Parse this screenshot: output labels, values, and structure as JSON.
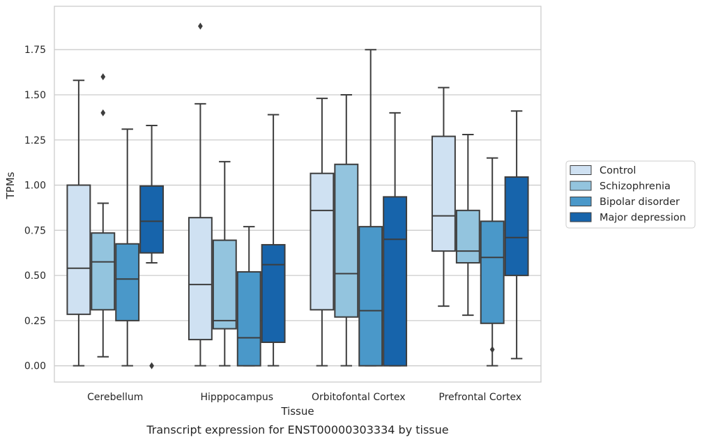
{
  "colors": {
    "series": [
      "#cfe1f2",
      "#93c4de",
      "#4a98c9",
      "#1764ab"
    ],
    "edge": "#3d3d3d",
    "grid": "#cccccc",
    "frame": "#cccccc",
    "outlier": "#3d3d3d"
  },
  "chart_data": {
    "type": "box",
    "caption": "Transcript expression for ENST00000303334 by tissue",
    "xlabel": "Tissue",
    "ylabel": "TPMs",
    "ylim": [
      -0.09,
      1.99
    ],
    "yticks": [
      "0.00",
      "0.25",
      "0.50",
      "0.75",
      "1.00",
      "1.25",
      "1.50",
      "1.75"
    ],
    "grid": "horizontal",
    "legend_position": "right",
    "categories": [
      "Cerebellum",
      "Hipppocampus",
      "Orbitofontal Cortex",
      "Prefrontal Cortex"
    ],
    "series": [
      {
        "name": "Control",
        "boxes": [
          {
            "whislo": 0.0,
            "q1": 0.285,
            "med": 0.54,
            "q3": 1.0,
            "whishi": 1.58,
            "fliers": []
          },
          {
            "whislo": 0.0,
            "q1": 0.145,
            "med": 0.45,
            "q3": 0.82,
            "whishi": 1.45,
            "fliers": [
              1.88
            ]
          },
          {
            "whislo": 0.0,
            "q1": 0.31,
            "med": 0.86,
            "q3": 1.065,
            "whishi": 1.48,
            "fliers": []
          },
          {
            "whislo": 0.33,
            "q1": 0.635,
            "med": 0.83,
            "q3": 1.27,
            "whishi": 1.54,
            "fliers": []
          }
        ]
      },
      {
        "name": "Schizophrenia",
        "boxes": [
          {
            "whislo": 0.05,
            "q1": 0.31,
            "med": 0.575,
            "q3": 0.735,
            "whishi": 0.9,
            "fliers": [
              1.4,
              1.6
            ]
          },
          {
            "whislo": 0.0,
            "q1": 0.205,
            "med": 0.25,
            "q3": 0.695,
            "whishi": 1.13,
            "fliers": []
          },
          {
            "whislo": 0.0,
            "q1": 0.27,
            "med": 0.51,
            "q3": 1.115,
            "whishi": 1.5,
            "fliers": []
          },
          {
            "whislo": 0.28,
            "q1": 0.57,
            "med": 0.635,
            "q3": 0.86,
            "whishi": 1.28,
            "fliers": []
          }
        ]
      },
      {
        "name": "Bipolar disorder",
        "boxes": [
          {
            "whislo": 0.0,
            "q1": 0.25,
            "med": 0.48,
            "q3": 0.675,
            "whishi": 1.31,
            "fliers": []
          },
          {
            "whislo": 0.0,
            "q1": 0.0,
            "med": 0.155,
            "q3": 0.52,
            "whishi": 0.77,
            "fliers": []
          },
          {
            "whislo": 0.0,
            "q1": 0.0,
            "med": 0.305,
            "q3": 0.77,
            "whishi": 1.75,
            "fliers": []
          },
          {
            "whislo": 0.0,
            "q1": 0.235,
            "med": 0.6,
            "q3": 0.8,
            "whishi": 1.15,
            "fliers": [
              0.09
            ]
          }
        ]
      },
      {
        "name": "Major depression",
        "boxes": [
          {
            "whislo": 0.57,
            "q1": 0.625,
            "med": 0.8,
            "q3": 0.995,
            "whishi": 1.33,
            "fliers": [
              0.0
            ]
          },
          {
            "whislo": 0.0,
            "q1": 0.13,
            "med": 0.56,
            "q3": 0.67,
            "whishi": 1.39,
            "fliers": []
          },
          {
            "whislo": 0.0,
            "q1": 0.0,
            "med": 0.7,
            "q3": 0.935,
            "whishi": 1.4,
            "fliers": []
          },
          {
            "whislo": 0.04,
            "q1": 0.5,
            "med": 0.71,
            "q3": 1.045,
            "whishi": 1.41,
            "fliers": []
          }
        ]
      }
    ]
  }
}
